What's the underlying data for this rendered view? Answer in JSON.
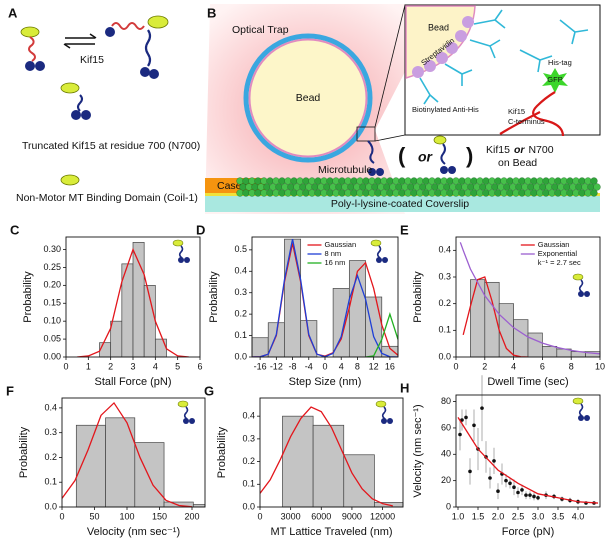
{
  "diagram": {
    "panel_a": {
      "letter": "A",
      "kif15": "Kif15",
      "truncated": "Truncated Kif15 at residue 700 (N700)",
      "coil": "Non-Motor MT Binding Domain (Coil-1)"
    },
    "panel_b": {
      "letter": "B",
      "optical_trap": "Optical Trap",
      "bead": "Bead",
      "microtubule": "Microtubule",
      "casein": "Casein",
      "coverslip": "Poly-l-lysine-coated Coverslip",
      "paren_open": "(",
      "paren_or": "or",
      "paren_close": ")",
      "motor_label": [
        "Kif15",
        "or",
        "N700",
        "on Bead"
      ],
      "inset": {
        "bead": "Bead",
        "streptavidin": "Streptavidin",
        "his_tag": "His-tag",
        "gfp": "GFP",
        "antibody": "Biotinylated Anti-His",
        "c_terminus": [
          "Kif15",
          "C-terminus"
        ]
      }
    }
  },
  "chart_data": [
    {
      "panel": "C",
      "type": "histogram",
      "xlabel": "Stall Force (pN)",
      "ylabel": "Probability",
      "color": "#c4c4c4",
      "bins": [
        1.5,
        2,
        2.5,
        3,
        3.5,
        4,
        4.5
      ],
      "values": [
        0.04,
        0.1,
        0.26,
        0.32,
        0.2,
        0.05
      ],
      "xlim": [
        0,
        6
      ],
      "xticks": [
        0,
        1,
        2,
        3,
        4,
        5,
        6
      ],
      "ylim": [
        0,
        0.335
      ],
      "yticks": [
        {
          "value": 0,
          "label": "0.00"
        },
        0.05,
        {
          "value": 0.1,
          "label": "0.10"
        },
        0.15,
        {
          "value": 0.2,
          "label": "0.20"
        },
        0.25,
        {
          "value": 0.3,
          "label": "0.30"
        }
      ],
      "series": [
        {
          "color": "#e3161c",
          "x": [
            0.5,
            1,
            1.5,
            2,
            2.5,
            3,
            3.5,
            4,
            4.5,
            5,
            5.5
          ],
          "values": [
            0,
            0.003,
            0.016,
            0.08,
            0.21,
            0.3,
            0.23,
            0.1,
            0.023,
            0.003,
            0
          ]
        }
      ]
    },
    {
      "panel": "D",
      "type": "histogram",
      "xlabel": "Step Size (nm)",
      "ylabel": "Probability",
      "color": "#c4c4c4",
      "bins": [
        -18,
        -14,
        -10,
        -6,
        -2,
        2,
        6,
        10,
        14,
        18
      ],
      "values": [
        0.09,
        0.16,
        0.55,
        0.17,
        0,
        0.32,
        0.45,
        0.28,
        0.05
      ],
      "xlim": [
        -18,
        18
      ],
      "xticks": [
        -16,
        -12,
        -8,
        -4,
        0,
        4,
        8,
        12,
        16
      ],
      "ylim": [
        0,
        0.56
      ],
      "yticks": [
        {
          "value": 0,
          "label": "0.0"
        },
        0.1,
        0.2,
        0.3,
        0.4,
        0.5
      ],
      "series": [
        {
          "name": "Gaussian",
          "color": "#e3161c",
          "x": [
            -18,
            -16,
            -14,
            -12,
            -10,
            -8,
            -6,
            -4,
            -2,
            0,
            2,
            4,
            6,
            8,
            10,
            12,
            14,
            16,
            18
          ],
          "values": [
            0,
            0.001,
            0.013,
            0.1,
            0.35,
            0.53,
            0.35,
            0.1,
            0.013,
            0.004,
            0.02,
            0.084,
            0.23,
            0.4,
            0.44,
            0.32,
            0.15,
            0.04,
            0.008
          ]
        },
        {
          "name": "8 nm",
          "color": "#1f3fd6",
          "x": [
            -18,
            -16,
            -14,
            -12,
            -10,
            -8,
            -6,
            -4,
            -2,
            0,
            2,
            4,
            6,
            8,
            10,
            12,
            14,
            16,
            18
          ],
          "values": [
            0,
            0.001,
            0.013,
            0.105,
            0.36,
            0.55,
            0.36,
            0.105,
            0.013,
            0.001,
            0.017,
            0.095,
            0.27,
            0.38,
            0.27,
            0.095,
            0.017,
            0.001,
            0
          ]
        },
        {
          "name": "16 nm",
          "color": "#22b022",
          "x": [
            10,
            12,
            14,
            16,
            18
          ],
          "values": [
            0,
            0.005,
            0.082,
            0.2,
            0.082
          ]
        }
      ]
    },
    {
      "panel": "E",
      "type": "histogram",
      "xlabel": "Dwell Time (sec)",
      "ylabel": "Probability",
      "color": "#c4c4c4",
      "bins": [
        1,
        2,
        3,
        4,
        5,
        6,
        7,
        8,
        9,
        10
      ],
      "values": [
        0.29,
        0.28,
        0.2,
        0.14,
        0.09,
        0.04,
        0.03,
        0.02,
        0.02
      ],
      "xlim": [
        0,
        10
      ],
      "xticks": [
        0,
        2,
        4,
        6,
        8,
        10
      ],
      "ylim": [
        0,
        0.45
      ],
      "yticks": [
        {
          "value": 0,
          "label": "0.0"
        },
        0.1,
        0.2,
        0.3,
        0.4
      ],
      "annotation": "k⁻¹ = 2.7 sec",
      "series": [
        {
          "name": "Gaussian",
          "color": "#e3161c",
          "x": [
            0.5,
            1,
            1.5,
            2,
            2.5,
            3,
            3.5,
            4,
            4.5,
            5
          ],
          "values": [
            0.083,
            0.19,
            0.29,
            0.3,
            0.21,
            0.1,
            0.032,
            0.007,
            0.001,
            0
          ]
        },
        {
          "name": "Exponential",
          "color": "#9c5fd0",
          "x": [
            0.3,
            0.5,
            1,
            2,
            3,
            4,
            5,
            6,
            7,
            8,
            9,
            10
          ],
          "values": [
            0.43,
            0.4,
            0.33,
            0.23,
            0.16,
            0.11,
            0.075,
            0.052,
            0.036,
            0.025,
            0.017,
            0.012
          ]
        }
      ]
    },
    {
      "panel": "F",
      "type": "histogram",
      "xlabel": "Velocity (nm sec⁻¹)",
      "ylabel": "Probability",
      "color": "#c4c4c4",
      "bins": [
        22,
        67,
        112,
        157,
        202,
        220
      ],
      "values": [
        0.33,
        0.36,
        0.26,
        0.02,
        0.01
      ],
      "xlim": [
        0,
        220
      ],
      "xticks": [
        0,
        50,
        100,
        150,
        200
      ],
      "ylim": [
        0,
        0.44
      ],
      "yticks": [
        {
          "value": 0,
          "label": "0.0"
        },
        0.1,
        0.2,
        0.3,
        0.4
      ],
      "series": [
        {
          "color": "#e3161c",
          "x": [
            0,
            20,
            40,
            60,
            80,
            100,
            120,
            140,
            160,
            180,
            200
          ],
          "values": [
            0.035,
            0.107,
            0.23,
            0.37,
            0.42,
            0.34,
            0.2,
            0.088,
            0.027,
            0.006,
            0.001
          ]
        }
      ]
    },
    {
      "panel": "G",
      "type": "histogram",
      "xlabel": "MT Lattice Traveled (nm)",
      "ylabel": "Probability",
      "color": "#c4c4c4",
      "bins": [
        2200,
        5200,
        8200,
        11200,
        14000
      ],
      "values": [
        0.4,
        0.36,
        0.23,
        0.02
      ],
      "xlim": [
        0,
        14000
      ],
      "xticks": [
        0,
        3000,
        6000,
        9000,
        12000
      ],
      "ylim": [
        0,
        0.48
      ],
      "yticks": [
        {
          "value": 0,
          "label": "0.0"
        },
        0.1,
        0.2,
        0.3,
        0.4
      ],
      "series": [
        {
          "color": "#e3161c",
          "x": [
            0,
            1000,
            2000,
            3000,
            4000,
            5000,
            6000,
            7000,
            8000,
            9000,
            10000,
            11000,
            12000,
            13000
          ],
          "values": [
            0.06,
            0.12,
            0.21,
            0.31,
            0.39,
            0.44,
            0.42,
            0.35,
            0.25,
            0.15,
            0.08,
            0.036,
            0.015,
            0.005
          ]
        }
      ]
    },
    {
      "panel": "H",
      "type": "scatter",
      "xlabel": "Force (pN)",
      "ylabel": "Velocity (nm sec⁻¹)",
      "color": "#111111",
      "error_color": "#999999",
      "x": [
        1.05,
        1.1,
        1.2,
        1.3,
        1.4,
        1.5,
        1.6,
        1.7,
        1.8,
        1.9,
        2.0,
        2.1,
        2.2,
        2.3,
        2.4,
        2.5,
        2.6,
        2.7,
        2.8,
        2.9,
        3.0,
        3.2,
        3.4,
        3.6,
        3.8,
        4.0,
        4.2,
        4.4
      ],
      "values": [
        55,
        66,
        68,
        27,
        62,
        44,
        75,
        38,
        22,
        35,
        12,
        25,
        20,
        18,
        15,
        11,
        13,
        9,
        9,
        8,
        7,
        9,
        8,
        6,
        5,
        4,
        3,
        3
      ],
      "errors": [
        12,
        8,
        6,
        10,
        12,
        16,
        25,
        12,
        8,
        10,
        6,
        8,
        5,
        4,
        6,
        4,
        4,
        3,
        3,
        3,
        2,
        3,
        2,
        2,
        2,
        2,
        1,
        1
      ],
      "xlim": [
        0.95,
        4.55
      ],
      "xticks": [
        {
          "value": 1,
          "label": "1.0"
        },
        1.5,
        {
          "value": 2,
          "label": "2.0"
        },
        2.5,
        {
          "value": 3,
          "label": "3.0"
        },
        3.5,
        {
          "value": 4,
          "label": "4.0"
        }
      ],
      "ylim": [
        0,
        85
      ],
      "yticks": [
        0,
        20,
        40,
        60,
        80
      ],
      "series": [
        {
          "color": "#e3161c",
          "x": [
            1,
            1.5,
            2,
            2.5,
            3,
            3.5,
            4,
            4.5
          ],
          "values": [
            68,
            44,
            28,
            18,
            10,
            7,
            4,
            3
          ]
        }
      ]
    }
  ]
}
